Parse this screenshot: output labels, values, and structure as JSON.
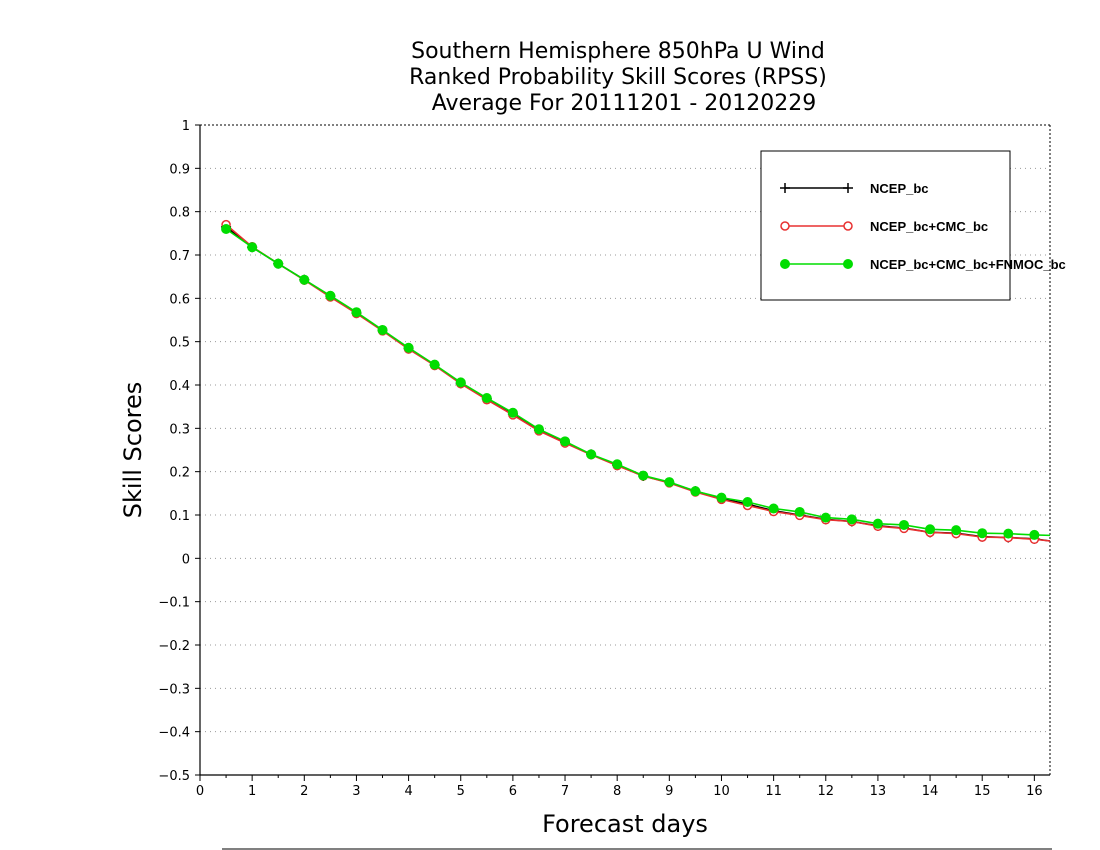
{
  "chart_data": {
    "type": "line",
    "title_lines": [
      "Southern Hemisphere 850hPa U Wind",
      "Ranked Probability Skill Scores (RPSS)",
      "Average For 20111201 - 20120229"
    ],
    "xlabel": "Forecast days",
    "ylabel": "Skill Scores",
    "xlim": [
      0,
      16.3
    ],
    "ylim": [
      -0.5,
      1
    ],
    "x_ticks": [
      0,
      1,
      2,
      3,
      4,
      5,
      6,
      7,
      8,
      9,
      10,
      11,
      12,
      13,
      14,
      15,
      16
    ],
    "y_ticks": [
      1,
      0.9,
      0.8,
      0.7,
      0.6,
      0.5,
      0.4,
      0.3,
      0.2,
      0.1,
      0,
      -0.1,
      -0.2,
      -0.3,
      -0.4,
      -0.5
    ],
    "y_tick_labels": [
      "1",
      "0.9",
      "0.8",
      "0.7",
      "0.6",
      "0.5",
      "0.4",
      "0.3",
      "0.2",
      "0.1",
      "0",
      "−0.1",
      "−0.2",
      "−0.3",
      "−0.4",
      "−0.5"
    ],
    "grid": "horizontal dotted",
    "legend_position": "top-right",
    "x": [
      0.5,
      1,
      1.5,
      2,
      2.5,
      3,
      3.5,
      4,
      4.5,
      5,
      5.5,
      6,
      6.5,
      7,
      7.5,
      8,
      8.5,
      9,
      9.5,
      10,
      10.5,
      11,
      11.5,
      12,
      12.5,
      13,
      13.5,
      14,
      14.5,
      15,
      15.5,
      16,
      16.3
    ],
    "series": [
      {
        "name": "NCEP_bc",
        "color": "#000000",
        "marker": "plus",
        "values": [
          0.765,
          0.718,
          0.68,
          0.643,
          0.605,
          0.566,
          0.526,
          0.484,
          0.446,
          0.404,
          0.368,
          0.333,
          0.296,
          0.268,
          0.24,
          0.215,
          0.19,
          0.175,
          0.155,
          0.138,
          0.125,
          0.11,
          0.1,
          0.09,
          0.085,
          0.075,
          0.07,
          0.06,
          0.058,
          0.05,
          0.048,
          0.045,
          0.04
        ]
      },
      {
        "name": "NCEP_bc+CMC_bc",
        "color": "#e83030",
        "marker": "open-circle",
        "values": [
          0.77,
          0.719,
          0.68,
          0.642,
          0.603,
          0.565,
          0.525,
          0.483,
          0.445,
          0.403,
          0.366,
          0.331,
          0.294,
          0.266,
          0.239,
          0.214,
          0.19,
          0.174,
          0.153,
          0.136,
          0.122,
          0.108,
          0.099,
          0.089,
          0.085,
          0.074,
          0.069,
          0.06,
          0.057,
          0.049,
          0.048,
          0.044,
          0.04
        ]
      },
      {
        "name": "NCEP_bc+CMC_bc+FNMOC_bc",
        "color": "#00dd00",
        "marker": "filled-circle",
        "values": [
          0.76,
          0.718,
          0.68,
          0.643,
          0.606,
          0.568,
          0.527,
          0.486,
          0.447,
          0.406,
          0.37,
          0.336,
          0.298,
          0.27,
          0.24,
          0.217,
          0.191,
          0.176,
          0.155,
          0.14,
          0.13,
          0.115,
          0.107,
          0.094,
          0.09,
          0.08,
          0.077,
          0.067,
          0.065,
          0.058,
          0.057,
          0.054,
          0.053
        ]
      }
    ]
  }
}
